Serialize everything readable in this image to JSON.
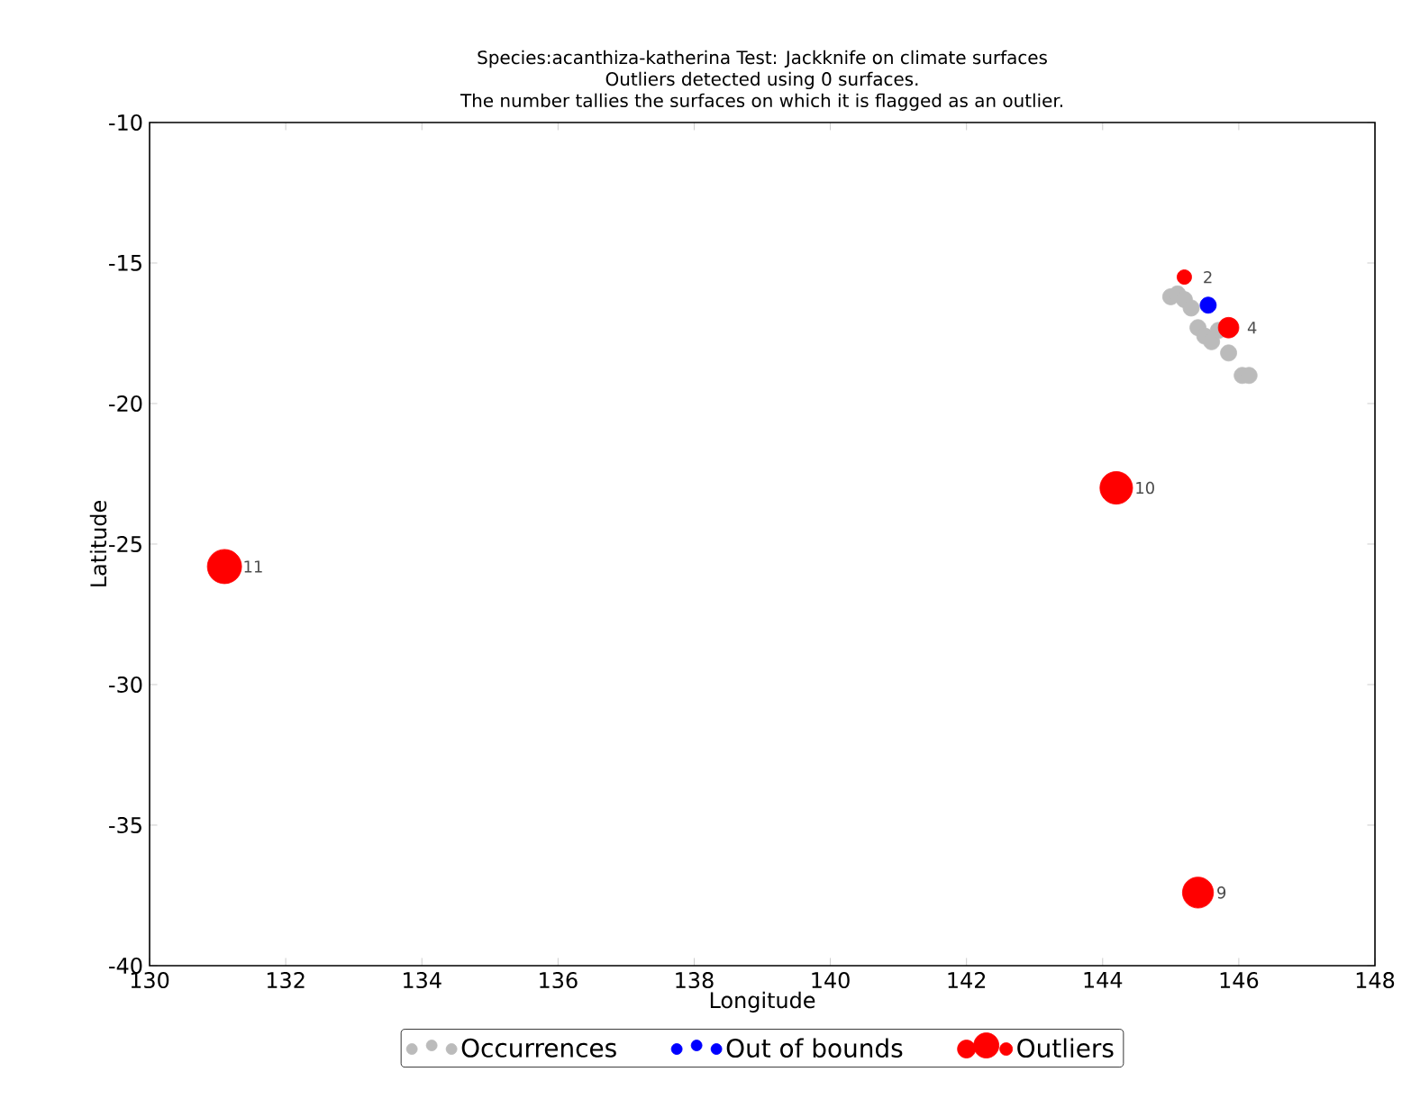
{
  "chart_data": {
    "type": "scatter",
    "title": "Species:acanthiza-katherina     Test: Jackknife on climate surfaces",
    "subtitle": "Outliers detected using 0 surfaces.",
    "annotations": [
      "The number tallies the surfaces on which it is flagged as an outlier.",
      {
        "text": "11",
        "x": 131.1,
        "y": -25.8
      },
      {
        "text": "10",
        "x": 144.2,
        "y": -23.0
      },
      {
        "text": "9",
        "x": 145.4,
        "y": -37.4
      },
      {
        "text": "2",
        "x": 145.2,
        "y": -15.5
      },
      {
        "text": "4",
        "x": 145.85,
        "y": -17.3
      }
    ],
    "xlabel": "Longitude",
    "ylabel": "Latitude",
    "xlim": [
      130,
      148
    ],
    "ylim": [
      -40,
      -10
    ],
    "xticks": [
      130,
      132,
      134,
      136,
      138,
      140,
      142,
      144,
      146,
      148
    ],
    "yticks": [
      -40,
      -35,
      -30,
      -25,
      -20,
      -15,
      -10
    ],
    "marker": "circle",
    "legend": "bottom",
    "series": [
      {
        "name": "Occurrences",
        "color": "#bbbbbb",
        "x": [
          145.0,
          145.1,
          145.2,
          145.3,
          145.4,
          145.5,
          145.6,
          145.7,
          145.85,
          146.05,
          146.15
        ],
        "values": [
          -16.2,
          -16.1,
          -16.3,
          -16.6,
          -17.3,
          -17.6,
          -17.8,
          -17.4,
          -18.2,
          -19.0,
          -19.0
        ]
      },
      {
        "name": "Out of bounds",
        "color": "#0000ff",
        "x": [
          145.55
        ],
        "values": [
          -16.5
        ]
      },
      {
        "name": "Outliers",
        "type": "bubble",
        "color": "#ff0000",
        "x": [
          131.1,
          144.2,
          145.4,
          145.2,
          145.85
        ],
        "values": [
          -25.8,
          -23.0,
          -37.4,
          -15.5,
          -17.3
        ],
        "sizes": [
          1,
          0.91,
          0.82,
          0.18,
          0.36
        ]
      }
    ]
  }
}
